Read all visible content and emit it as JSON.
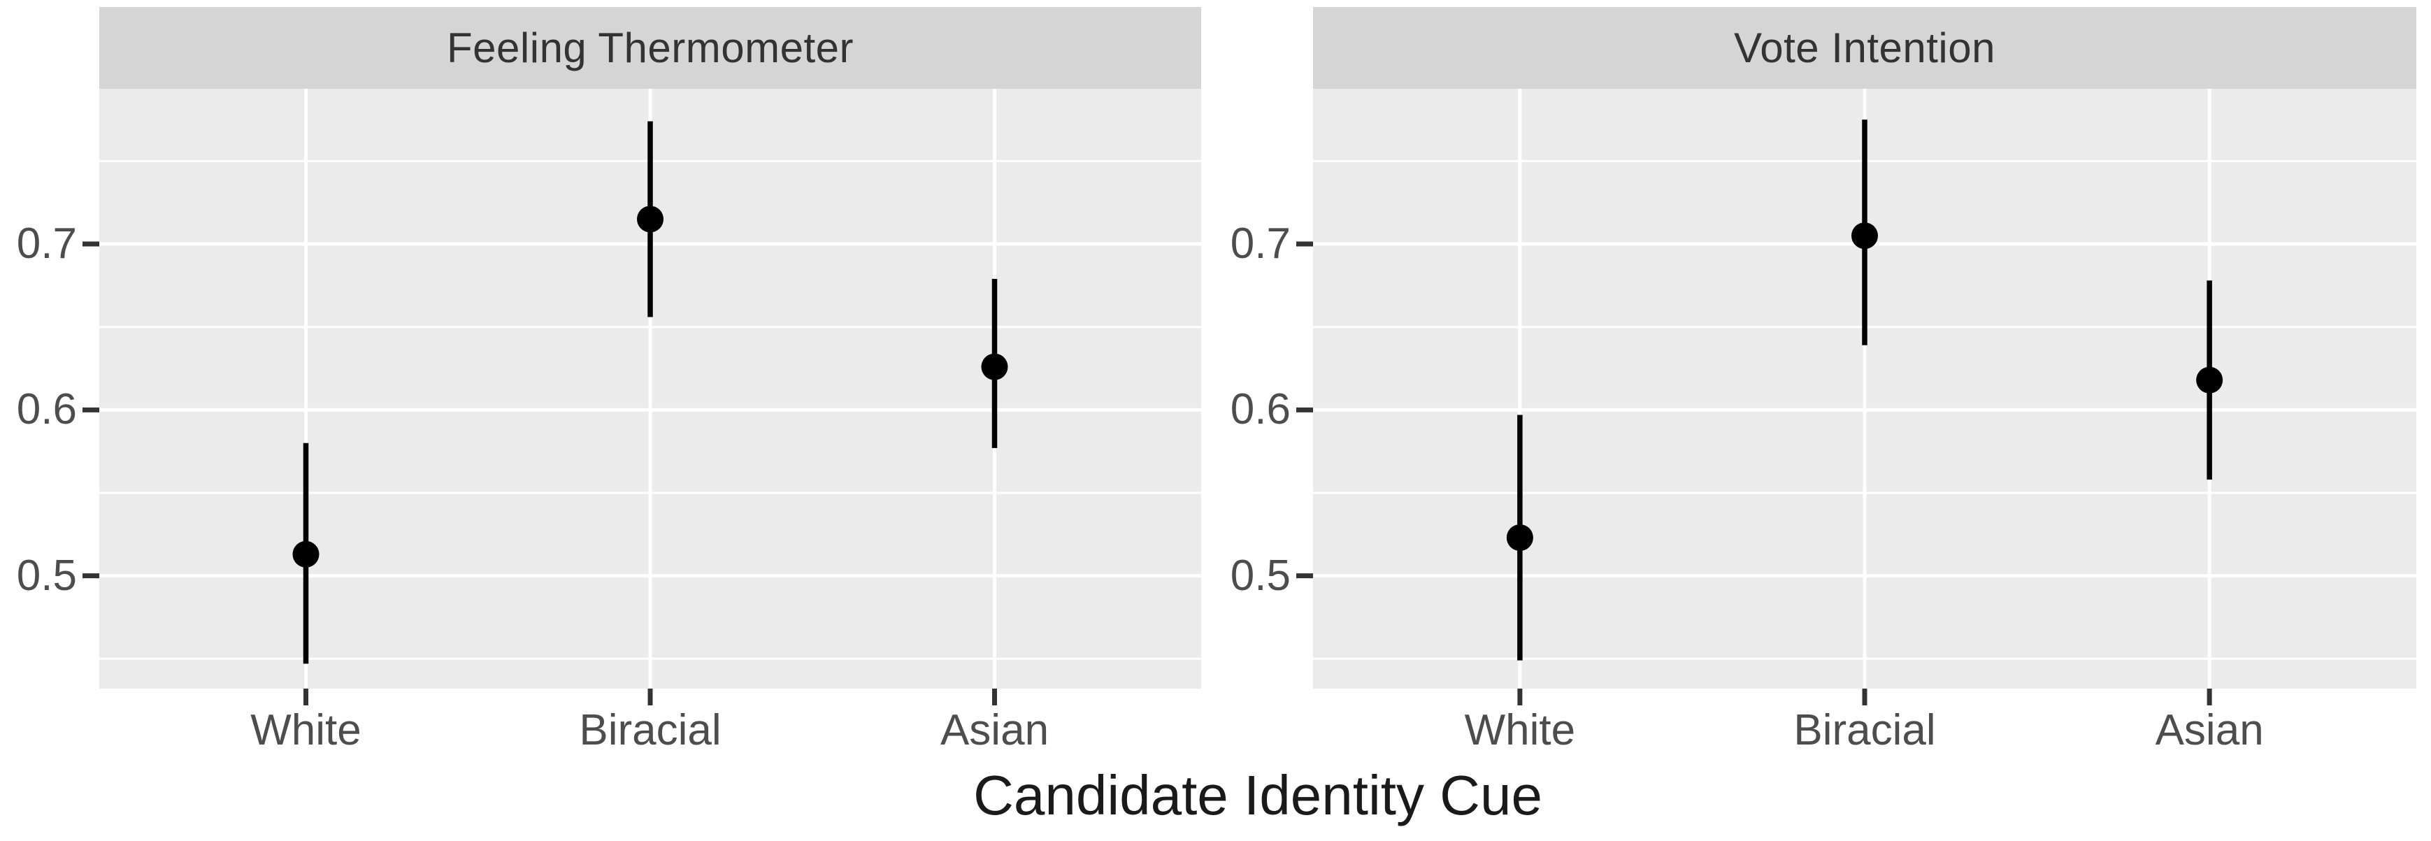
{
  "chart_data": {
    "type": "scatter",
    "subtype": "pointrange-facets",
    "title": "",
    "xlabel": "Candidate Identity Cue",
    "ylabel": "",
    "categories": [
      "White",
      "Biracial",
      "Asian"
    ],
    "facets": [
      {
        "title": "Feeling Thermometer",
        "points": [
          {
            "category": "White",
            "estimate": 0.513,
            "lower": 0.447,
            "upper": 0.58
          },
          {
            "category": "Biracial",
            "estimate": 0.715,
            "lower": 0.656,
            "upper": 0.774
          },
          {
            "category": "Asian",
            "estimate": 0.626,
            "lower": 0.577,
            "upper": 0.679
          }
        ]
      },
      {
        "title": "Vote Intention",
        "points": [
          {
            "category": "White",
            "estimate": 0.523,
            "lower": 0.449,
            "upper": 0.597
          },
          {
            "category": "Biracial",
            "estimate": 0.705,
            "lower": 0.639,
            "upper": 0.775
          },
          {
            "category": "Asian",
            "estimate": 0.618,
            "lower": 0.558,
            "upper": 0.678
          }
        ]
      }
    ],
    "y_axis": {
      "ticks": [
        {
          "value": 0.7,
          "label": "0.7"
        },
        {
          "value": 0.6,
          "label": "0.6"
        },
        {
          "value": 0.5,
          "label": "0.5"
        }
      ],
      "minor_gridlines": [
        0.45,
        0.55,
        0.65,
        0.75
      ],
      "ylim": [
        0.432,
        0.794
      ]
    },
    "grid": true,
    "legend": "none",
    "style": {
      "panel_bg": "#ebebeb",
      "strip_bg": "#d5d5d5",
      "grid_color": "#ffffff",
      "point_color": "#000000",
      "tick_mark_color": "#333333",
      "tick_label_color": "#4d4d4d",
      "strip_text_color": "#333333",
      "axis_title_color": "#1a1a1a"
    }
  }
}
